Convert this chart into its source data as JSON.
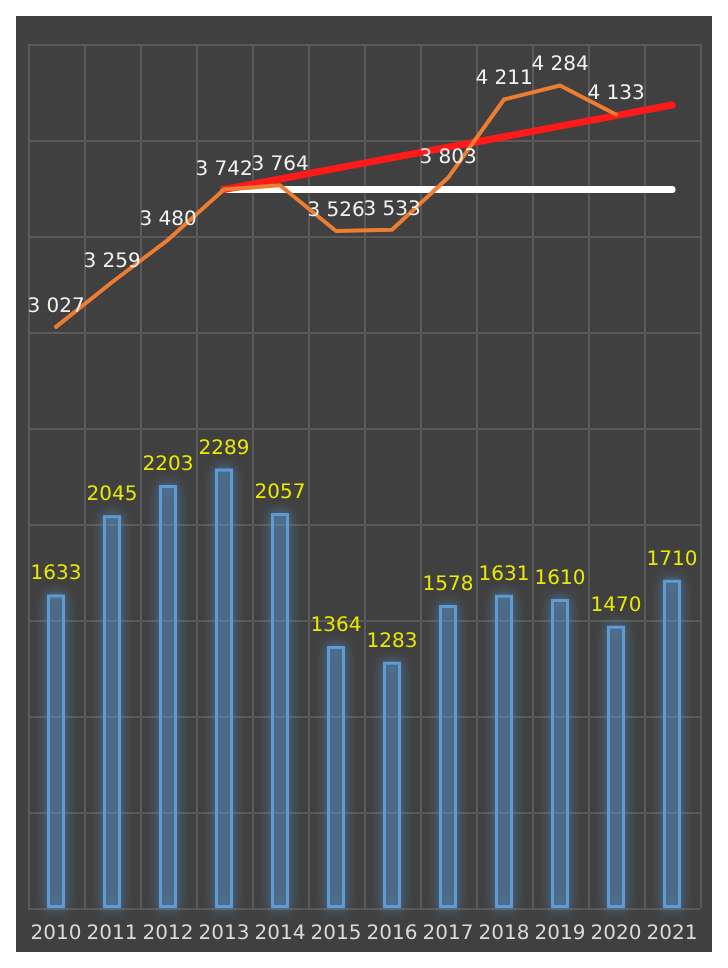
{
  "chart_data": {
    "type": "bar",
    "categories": [
      "2010",
      "2011",
      "2012",
      "2013",
      "2014",
      "2015",
      "2016",
      "2017",
      "2018",
      "2019",
      "2020",
      "2021"
    ],
    "series": [
      {
        "color": "#5b9bd5",
        "values": [
          1633,
          2045,
          2203,
          2289,
          2057,
          1364,
          1283,
          1578,
          1631,
          1610,
          1470,
          1710
        ],
        "value_labels": [
          "1633",
          "2045",
          "2203",
          "2289",
          "2057",
          "1364",
          "1283",
          "1578",
          "1631",
          "1610",
          "1470",
          "1710"
        ]
      },
      {
        "type": "line",
        "color": "#ed7d31",
        "values": [
          3027,
          3259,
          3480,
          3742,
          3764,
          3526,
          3533,
          3803,
          4211,
          4284,
          4133,
          null
        ],
        "value_labels": [
          "3 027",
          "3 259",
          "3 480",
          "3 742",
          "3 764",
          "3 526",
          "3 533",
          "3 803",
          "4 211",
          "4 284",
          "4 133",
          null
        ]
      },
      {
        "type": "line",
        "color": "#ffffff",
        "values": [
          null,
          null,
          null,
          3742,
          3742,
          3742,
          3742,
          3742,
          3742,
          3742,
          3742,
          3742
        ]
      },
      {
        "type": "line",
        "color": "#ff1a1a",
        "values": [
          null,
          null,
          null,
          3742,
          3797,
          3852,
          3907,
          3962,
          4017,
          4072,
          4127,
          4182
        ]
      }
    ],
    "ylim": [
      0,
      4500
    ],
    "yticks": [
      {
        "value": 0,
        "label": null
      },
      {
        "value": 500,
        "label": null
      },
      {
        "value": 1000,
        "label": null
      },
      {
        "value": 1500,
        "label": null
      },
      {
        "value": 2000,
        "label": null
      },
      {
        "value": 2500,
        "label": null
      },
      {
        "value": 3000,
        "label": null
      },
      {
        "value": 3500,
        "label": null
      },
      {
        "value": 4000,
        "label": null
      },
      {
        "value": 4500,
        "label": null
      }
    ],
    "tick_labels": "x",
    "grid": true,
    "marker": "none",
    "line_style": "solid"
  }
}
